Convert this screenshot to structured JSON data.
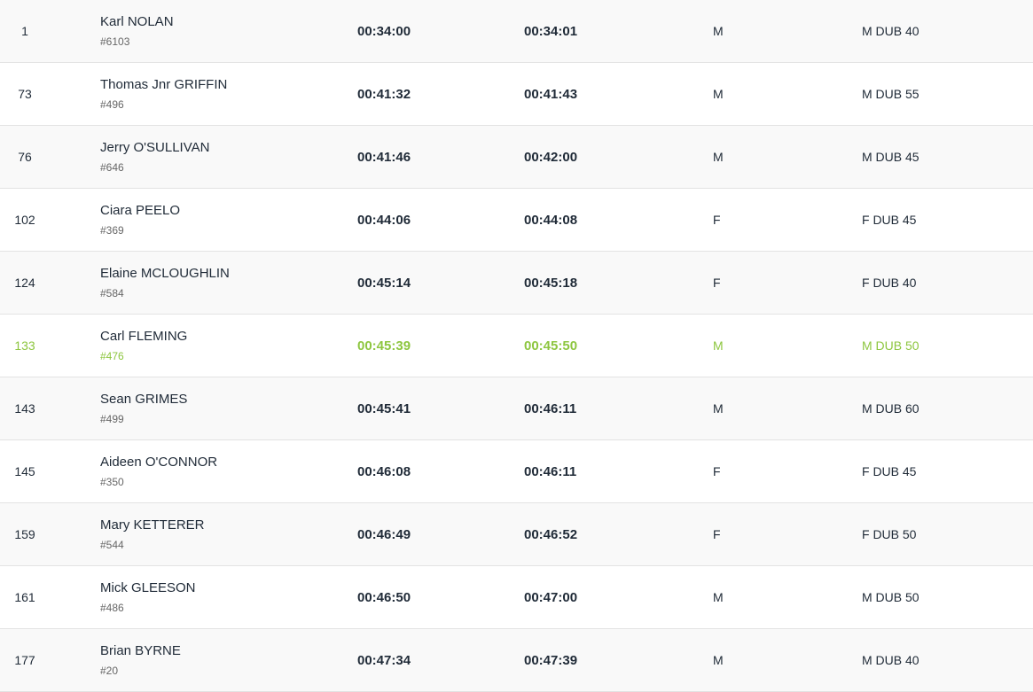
{
  "colors": {
    "accent": "#8dc63f",
    "text": "#1f2a37"
  },
  "highlighted_row": 5,
  "rows": [
    {
      "rank": "1",
      "name": "Karl NOLAN",
      "bib": "#6103",
      "chip_time": "00:34:00",
      "gun_time": "00:34:01",
      "gender": "M",
      "category": "M DUB 40"
    },
    {
      "rank": "73",
      "name": "Thomas Jnr GRIFFIN",
      "bib": "#496",
      "chip_time": "00:41:32",
      "gun_time": "00:41:43",
      "gender": "M",
      "category": "M DUB 55"
    },
    {
      "rank": "76",
      "name": "Jerry O'SULLIVAN",
      "bib": "#646",
      "chip_time": "00:41:46",
      "gun_time": "00:42:00",
      "gender": "M",
      "category": "M DUB 45"
    },
    {
      "rank": "102",
      "name": "Ciara PEELO",
      "bib": "#369",
      "chip_time": "00:44:06",
      "gun_time": "00:44:08",
      "gender": "F",
      "category": "F DUB 45"
    },
    {
      "rank": "124",
      "name": "Elaine MCLOUGHLIN",
      "bib": "#584",
      "chip_time": "00:45:14",
      "gun_time": "00:45:18",
      "gender": "F",
      "category": "F DUB 40"
    },
    {
      "rank": "133",
      "name": "Carl FLEMING",
      "bib": "#476",
      "chip_time": "00:45:39",
      "gun_time": "00:45:50",
      "gender": "M",
      "category": "M DUB 50"
    },
    {
      "rank": "143",
      "name": "Sean GRIMES",
      "bib": "#499",
      "chip_time": "00:45:41",
      "gun_time": "00:46:11",
      "gender": "M",
      "category": "M DUB 60"
    },
    {
      "rank": "145",
      "name": "Aideen O'CONNOR",
      "bib": "#350",
      "chip_time": "00:46:08",
      "gun_time": "00:46:11",
      "gender": "F",
      "category": "F DUB 45"
    },
    {
      "rank": "159",
      "name": "Mary KETTERER",
      "bib": "#544",
      "chip_time": "00:46:49",
      "gun_time": "00:46:52",
      "gender": "F",
      "category": "F DUB 50"
    },
    {
      "rank": "161",
      "name": "Mick GLEESON",
      "bib": "#486",
      "chip_time": "00:46:50",
      "gun_time": "00:47:00",
      "gender": "M",
      "category": "M DUB 50"
    },
    {
      "rank": "177",
      "name": "Brian BYRNE",
      "bib": "#20",
      "chip_time": "00:47:34",
      "gun_time": "00:47:39",
      "gender": "M",
      "category": "M DUB 40"
    }
  ]
}
